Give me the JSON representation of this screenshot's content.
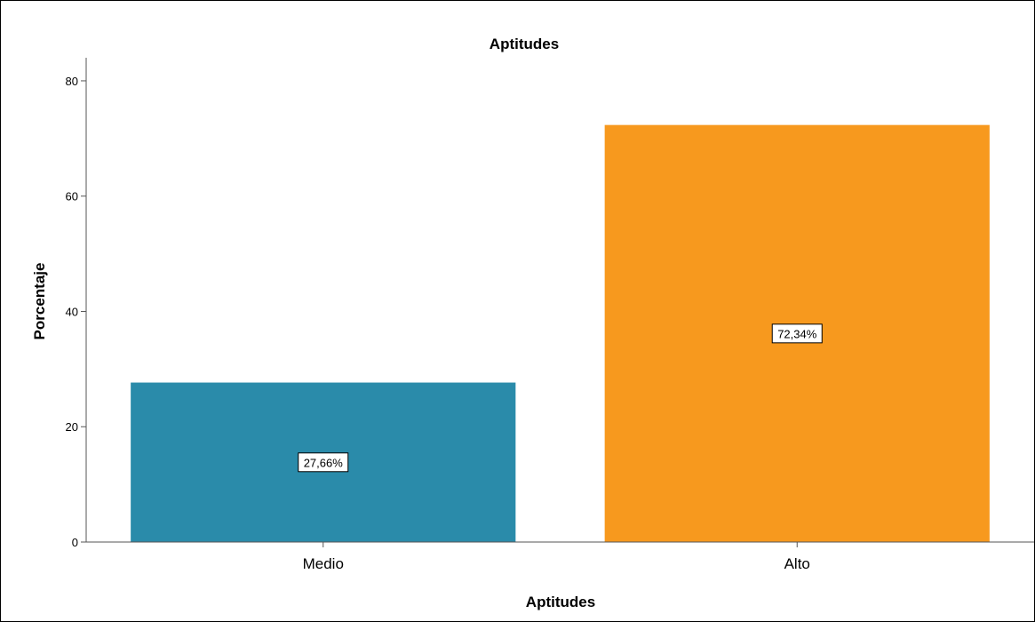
{
  "chart_data": {
    "type": "bar",
    "title": "Aptitudes",
    "xlabel": "Aptitudes",
    "ylabel": "Porcentaje",
    "categories": [
      "Medio",
      "Alto"
    ],
    "values": [
      27.66,
      72.34
    ],
    "data_labels": [
      "27,66%",
      "72,34%"
    ],
    "colors": [
      "#2A8BAA",
      "#F7991E"
    ],
    "ylim": [
      0,
      84
    ],
    "yticks": [
      0,
      20,
      40,
      60,
      80
    ],
    "grid": false,
    "legend": "none"
  }
}
